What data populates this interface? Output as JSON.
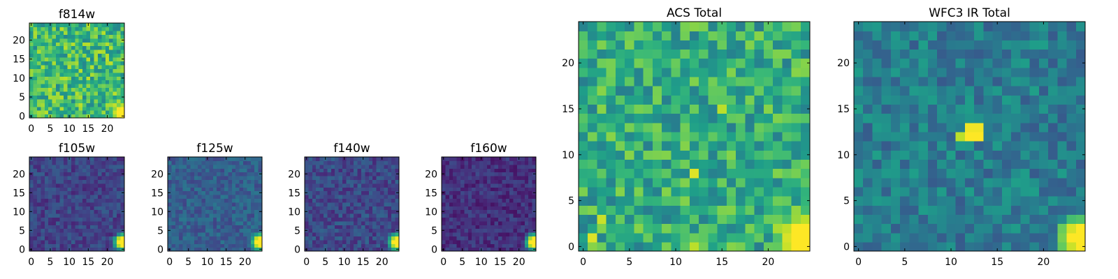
{
  "figure": {
    "background": "#ffffff"
  },
  "chart_data": [
    {
      "id": "f814w",
      "type": "heatmap",
      "title": "f814w",
      "colormap": "viridis",
      "size": 25,
      "xlim": [
        -0.5,
        24.5
      ],
      "ylim": [
        -0.5,
        24.5
      ],
      "xticks": [
        0,
        5,
        10,
        15,
        20
      ],
      "yticks": [
        0,
        5,
        10,
        15,
        20
      ],
      "noise_level": 0.68,
      "noise_spread": 0.22,
      "seed": 3,
      "source": {
        "x": 24,
        "y": 1,
        "radius": 3.5,
        "peak": 1.0
      },
      "extra_hot": []
    },
    {
      "id": "f105w",
      "type": "heatmap",
      "title": "f105w",
      "colormap": "viridis",
      "size": 25,
      "xlim": [
        -0.5,
        24.5
      ],
      "ylim": [
        -0.5,
        24.5
      ],
      "xticks": [
        0,
        5,
        10,
        15,
        20
      ],
      "yticks": [
        0,
        5,
        10,
        15,
        20
      ],
      "noise_level": 0.2,
      "noise_spread": 0.1,
      "seed": 11,
      "source": {
        "x": 24,
        "y": 2,
        "radius": 3.0,
        "peak": 1.0
      },
      "extra_hot": []
    },
    {
      "id": "f125w",
      "type": "heatmap",
      "title": "f125w",
      "colormap": "viridis",
      "size": 25,
      "xlim": [
        -0.5,
        24.5
      ],
      "ylim": [
        -0.5,
        24.5
      ],
      "xticks": [
        0,
        5,
        10,
        15,
        20
      ],
      "yticks": [
        0,
        5,
        10,
        15,
        20
      ],
      "noise_level": 0.3,
      "noise_spread": 0.1,
      "seed": 17,
      "source": {
        "x": 24,
        "y": 2,
        "radius": 3.0,
        "peak": 1.0
      },
      "extra_hot": []
    },
    {
      "id": "f140w",
      "type": "heatmap",
      "title": "f140w",
      "colormap": "viridis",
      "size": 25,
      "xlim": [
        -0.5,
        24.5
      ],
      "ylim": [
        -0.5,
        24.5
      ],
      "xticks": [
        0,
        5,
        10,
        15,
        20
      ],
      "yticks": [
        0,
        5,
        10,
        15,
        20
      ],
      "noise_level": 0.22,
      "noise_spread": 0.11,
      "seed": 23,
      "source": {
        "x": 24,
        "y": 2,
        "radius": 3.0,
        "peak": 1.0
      },
      "extra_hot": []
    },
    {
      "id": "f160w",
      "type": "heatmap",
      "title": "f160w",
      "colormap": "viridis",
      "size": 25,
      "xlim": [
        -0.5,
        24.5
      ],
      "ylim": [
        -0.5,
        24.5
      ],
      "xticks": [
        0,
        5,
        10,
        15,
        20
      ],
      "yticks": [
        0,
        5,
        10,
        15,
        20
      ],
      "noise_level": 0.14,
      "noise_spread": 0.09,
      "seed": 29,
      "source": {
        "x": 24,
        "y": 2,
        "radius": 3.0,
        "peak": 1.0
      },
      "extra_hot": []
    },
    {
      "id": "acs_total",
      "type": "heatmap",
      "title": "ACS Total",
      "colormap": "viridis",
      "size": 25,
      "xlim": [
        -0.5,
        24.5
      ],
      "ylim": [
        -0.5,
        24.5
      ],
      "xticks": [
        0,
        5,
        10,
        15,
        20
      ],
      "yticks": [
        0,
        5,
        10,
        15,
        20
      ],
      "noise_level": 0.62,
      "noise_spread": 0.2,
      "seed": 41,
      "source": {
        "x": 24,
        "y": 1,
        "radius": 3.8,
        "peak": 1.0
      },
      "extra_hot": [
        {
          "x": 12,
          "y": 8,
          "value": 0.95
        },
        {
          "x": 15,
          "y": 15,
          "value": 0.9
        },
        {
          "x": 1,
          "y": 1,
          "value": 0.95
        },
        {
          "x": 2,
          "y": 3,
          "value": 0.92
        },
        {
          "x": 12,
          "y": 0,
          "value": 0.9
        }
      ]
    },
    {
      "id": "wfc3_ir_total",
      "type": "heatmap",
      "title": "WFC3 IR Total",
      "colormap": "viridis",
      "size": 25,
      "xlim": [
        -0.5,
        24.5
      ],
      "ylim": [
        -0.5,
        24.5
      ],
      "xticks": [
        0,
        5,
        10,
        15,
        20
      ],
      "yticks": [
        0,
        5,
        10,
        15,
        20
      ],
      "noise_level": 0.42,
      "noise_spread": 0.14,
      "seed": 53,
      "source": {
        "x": 24,
        "y": 1,
        "radius": 3.2,
        "peak": 1.0
      },
      "extra_hot": [
        {
          "x": 12,
          "y": 12,
          "value": 1.0
        },
        {
          "x": 13,
          "y": 12,
          "value": 1.0
        },
        {
          "x": 12,
          "y": 13,
          "value": 0.98
        },
        {
          "x": 13,
          "y": 13,
          "value": 0.98
        },
        {
          "x": 11,
          "y": 12,
          "value": 0.9
        }
      ]
    }
  ]
}
